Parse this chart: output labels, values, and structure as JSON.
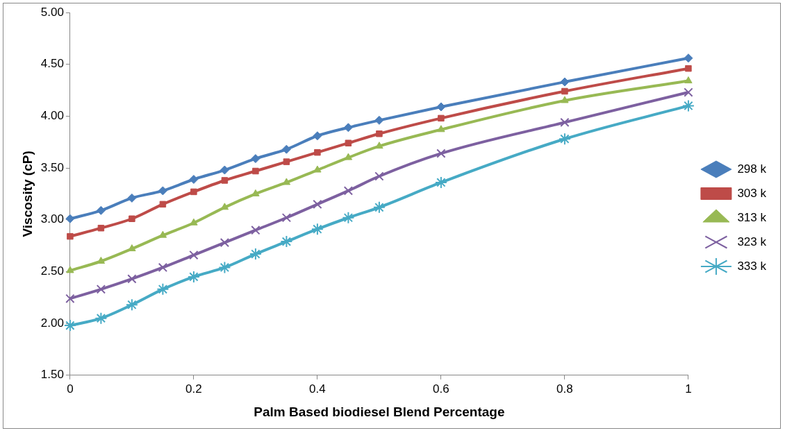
{
  "chart_data": {
    "type": "line",
    "xlabel": "Palm Based biodiesel Blend Percentage",
    "ylabel": "Viscosity (cP)",
    "x": [
      0,
      0.05,
      0.1,
      0.15,
      0.2,
      0.25,
      0.3,
      0.35,
      0.4,
      0.45,
      0.5,
      0.6,
      0.8,
      1
    ],
    "xlim": [
      0,
      1
    ],
    "xticks": [
      0,
      0.2,
      0.4,
      0.6,
      0.8,
      1
    ],
    "ylim": [
      1.5,
      5
    ],
    "yticks": [
      {
        "value": 1.5,
        "label": "1.50"
      },
      {
        "value": 2,
        "label": "2.00"
      },
      {
        "value": 2.5,
        "label": "2.50"
      },
      {
        "value": 3,
        "label": "3.00"
      },
      {
        "value": 3.5,
        "label": "3.50"
      },
      {
        "value": 4,
        "label": "4.00"
      },
      {
        "value": 4.5,
        "label": "4.50"
      },
      {
        "value": 5,
        "label": "5.00"
      }
    ],
    "grid": false,
    "legend": "right",
    "line_style": "solid",
    "series": [
      {
        "name": "298 k",
        "color": "#4a7ebb",
        "marker": "diamond",
        "values": [
          3.01,
          3.09,
          3.21,
          3.28,
          3.39,
          3.48,
          3.59,
          3.68,
          3.81,
          3.89,
          3.96,
          4.09,
          4.33,
          4.56
        ]
      },
      {
        "name": "303 k",
        "color": "#be4b48",
        "marker": "square",
        "values": [
          2.84,
          2.92,
          3.01,
          3.15,
          3.27,
          3.38,
          3.47,
          3.56,
          3.65,
          3.74,
          3.83,
          3.98,
          4.24,
          4.46
        ]
      },
      {
        "name": "313 k",
        "color": "#98b954",
        "marker": "triangle",
        "values": [
          2.51,
          2.6,
          2.72,
          2.85,
          2.97,
          3.12,
          3.25,
          3.36,
          3.48,
          3.6,
          3.71,
          3.87,
          4.15,
          4.34
        ]
      },
      {
        "name": "323 k",
        "color": "#7d60a0",
        "marker": "cross",
        "values": [
          2.24,
          2.33,
          2.43,
          2.54,
          2.66,
          2.78,
          2.9,
          3.02,
          3.15,
          3.28,
          3.42,
          3.64,
          3.94,
          4.23
        ]
      },
      {
        "name": "333 k",
        "color": "#46aac5",
        "marker": "cross",
        "values": [
          1.98,
          2.05,
          2.18,
          2.33,
          2.45,
          2.54,
          2.67,
          2.79,
          2.91,
          3.02,
          3.12,
          3.36,
          3.78,
          4.1
        ]
      }
    ]
  }
}
